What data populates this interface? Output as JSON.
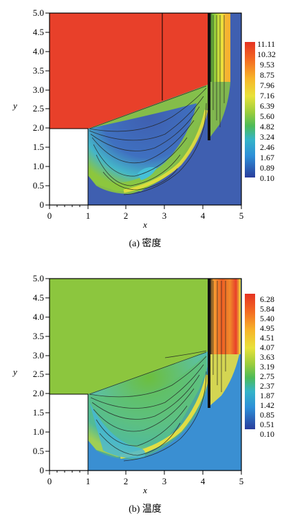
{
  "chart_data": [
    {
      "type": "heatmap",
      "caption": "(a) 密度",
      "xlabel": "x",
      "ylabel": "y",
      "xlim": [
        0,
        5
      ],
      "ylim": [
        0,
        5
      ],
      "x_ticks": [
        "0",
        "1",
        "2",
        "3",
        "4",
        "5"
      ],
      "y_ticks": [
        "0",
        "0.5",
        "1.0",
        "1.5",
        "2.0",
        "2.5",
        "3.0",
        "3.5",
        "4.0",
        "4.5",
        "5.0"
      ],
      "colorbar_levels": [
        "11.11",
        "10.32",
        "9.53",
        "8.75",
        "7.96",
        "7.16",
        "6.39",
        "5.60",
        "4.82",
        "3.24",
        "2.46",
        "1.67",
        "0.89",
        "0.10"
      ],
      "colors": {
        "high": "#e8402a",
        "mid": "#8cc63e",
        "low": "#3f5fb0",
        "jet": "#e8402a"
      }
    },
    {
      "type": "heatmap",
      "caption": "(b) 温度",
      "xlabel": "x",
      "ylabel": "y",
      "xlim": [
        0,
        5
      ],
      "ylim": [
        0,
        5
      ],
      "x_ticks": [
        "0",
        "1",
        "2",
        "3",
        "4",
        "5"
      ],
      "y_ticks": [
        "0",
        "0.5",
        "1.0",
        "1.5",
        "2.0",
        "2.5",
        "3.0",
        "3.5",
        "4.0",
        "4.5",
        "5.0"
      ],
      "colorbar_levels": [
        "6.28",
        "5.84",
        "5.40",
        "4.95",
        "4.51",
        "4.07",
        "3.63",
        "3.19",
        "2.75",
        "2.37",
        "1.87",
        "1.42",
        "0.85",
        "0.51",
        "0.10"
      ],
      "colors": {
        "high": "#e8402a",
        "mid": "#8cc63e",
        "low": "#3a8fd2",
        "jet": "#e8402a"
      }
    }
  ]
}
